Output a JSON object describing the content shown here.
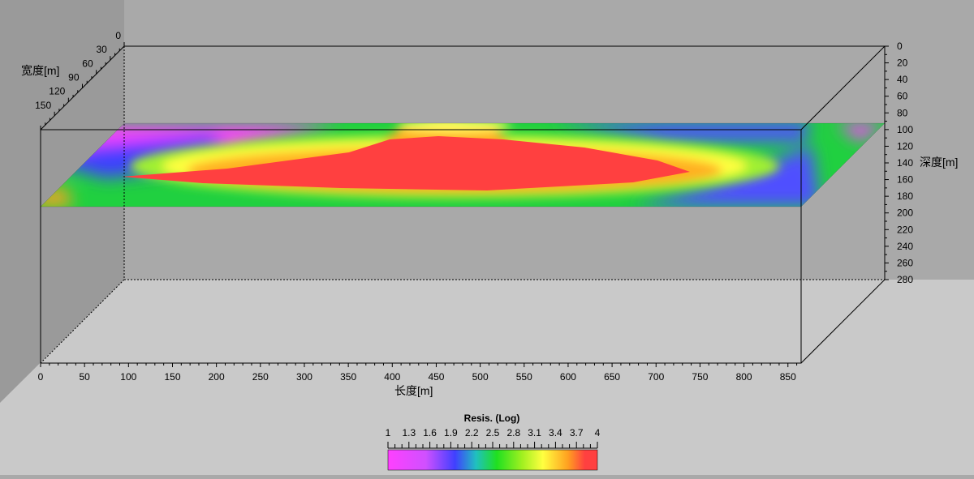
{
  "chart_data": {
    "type": "heatmap",
    "title": "",
    "x_axis": {
      "label": "长度[m]",
      "ticks": [
        0,
        50,
        100,
        150,
        200,
        250,
        300,
        350,
        400,
        450,
        500,
        550,
        600,
        650,
        700,
        750,
        800,
        850
      ],
      "range": [
        0,
        865
      ]
    },
    "y_axis": {
      "label": "宽度[m]",
      "ticks": [
        0,
        30,
        60,
        90,
        120,
        150
      ],
      "range": [
        0,
        180
      ]
    },
    "z_axis": {
      "label": "深度[m]",
      "ticks": [
        0,
        20,
        40,
        60,
        80,
        100,
        120,
        140,
        160,
        180,
        200,
        220,
        240,
        260,
        280
      ],
      "range": [
        0,
        280
      ],
      "inverted": true
    },
    "slice": {
      "orientation": "horizontal",
      "depth_top": 95,
      "depth_bottom": 195,
      "description_values": "resistivity log10 field; high (>=3.8) core spanning x≈150–820 m, low (~1–2) at corners"
    },
    "colorbar": {
      "title": "Resis. (Log)",
      "ticks": [
        "1",
        "1.3",
        "1.6",
        "1.9",
        "2.2",
        "2.5",
        "2.8",
        "3.1",
        "3.4",
        "3.7",
        "4"
      ],
      "range": [
        1,
        4
      ],
      "colors": [
        "#ff40ff",
        "#c060ff",
        "#4040ff",
        "#20c0c0",
        "#20e020",
        "#a0f020",
        "#ffff40",
        "#ffb020",
        "#ff4040"
      ]
    },
    "colors": {
      "back_wall": "#a9a9a9",
      "left_wall": "#9a9a9a",
      "floor": "#c9c9c9"
    }
  }
}
